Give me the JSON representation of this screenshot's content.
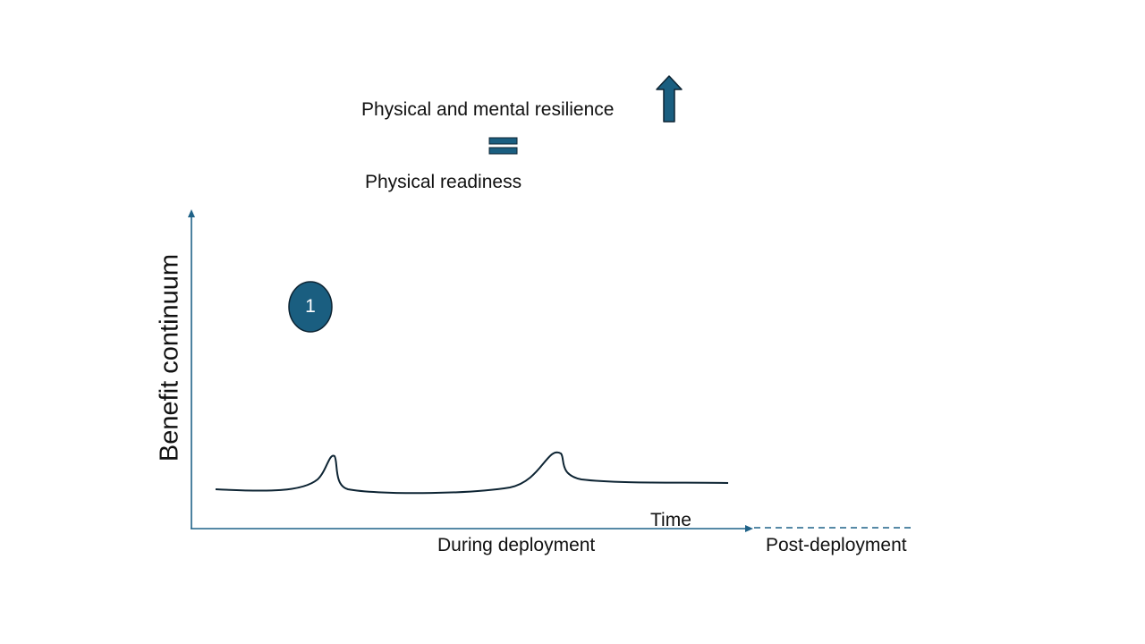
{
  "header": {
    "resilience_label": "Physical and mental resilience",
    "readiness_label": "Physical readiness"
  },
  "axes": {
    "y_label": "Benefit continuum",
    "x_label": "Time",
    "phase_during": "During deployment",
    "phase_post": "Post-deployment"
  },
  "marker": {
    "number": "1"
  },
  "colors": {
    "accent": "#1a5e80",
    "axis": "#1f6288",
    "curve": "#0d2433"
  },
  "icons": {
    "up": "up-arrow-icon",
    "equals": "equals-icon"
  }
}
